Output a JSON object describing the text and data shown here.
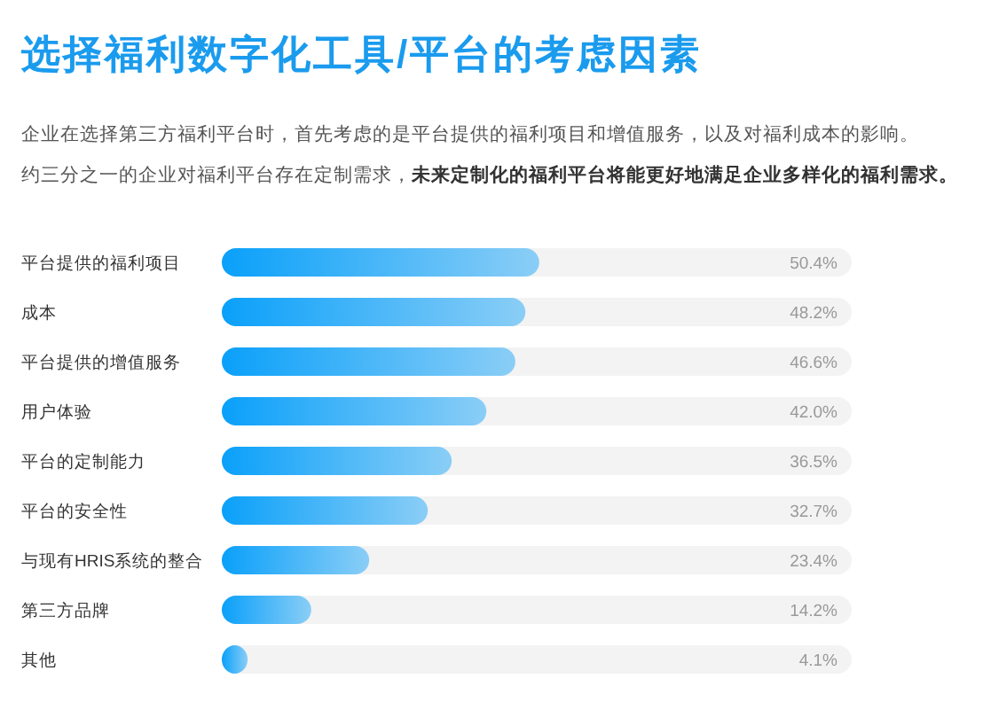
{
  "chart_data": {
    "type": "bar",
    "orientation": "horizontal",
    "title": "选择福利数字化工具/平台的考虑因素",
    "subtitle": "企业在选择第三方福利平台时，首先考虑的是平台提供的福利项目和增值服务，以及对福利成本的影响。",
    "annotations": [
      "约三分之一的企业对福利平台存在定制需求，",
      "未来定制化的福利平台将能更好地满足企业多样化的福利需求。"
    ],
    "categories": [
      "平台提供的福利项目",
      "成本",
      "平台提供的增值服务",
      "用户体验",
      "平台的定制能力",
      "平台的安全性",
      "与现有HRIS系统的整合",
      "第三方品牌",
      "其他"
    ],
    "values": [
      50.4,
      48.2,
      46.6,
      42.0,
      36.5,
      32.7,
      23.4,
      14.2,
      4.1
    ],
    "value_labels": [
      "50.4%",
      "48.2%",
      "46.6%",
      "42.0%",
      "36.5%",
      "32.7%",
      "23.4%",
      "14.2%",
      "4.1%"
    ],
    "color": "#0aa0fa",
    "xlim": [
      0,
      100
    ],
    "tick_labels": "y"
  }
}
